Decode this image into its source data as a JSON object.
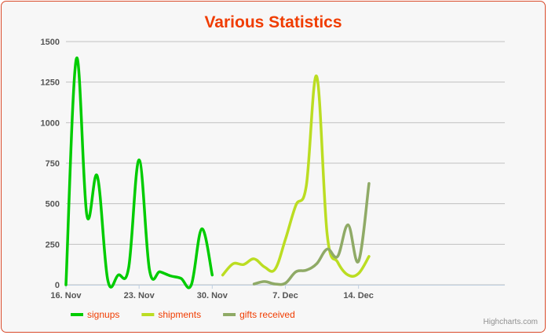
{
  "chart_data": {
    "type": "line",
    "title": "Various Statistics",
    "subtitle": "",
    "xlabel": "",
    "ylabel": "",
    "ylim": [
      0,
      1500
    ],
    "y_ticks": [
      "0",
      "250",
      "500",
      "750",
      "1000",
      "1250",
      "1500"
    ],
    "y_tick_values": [
      0,
      250,
      500,
      750,
      1000,
      1250,
      1500
    ],
    "x_range": [
      "2012-11-16",
      "2012-12-28"
    ],
    "x_ticks": [
      "16. Nov",
      "23. Nov",
      "30. Nov",
      "7. Dec",
      "14. Dec"
    ],
    "x_tick_dates": [
      "2012-11-16",
      "2012-11-23",
      "2012-11-30",
      "2012-12-07",
      "2012-12-14"
    ],
    "grid": true,
    "legend_position": "bottom-left",
    "series": [
      {
        "name": "signups",
        "color": "#00cc00",
        "x": [
          "2012-11-16",
          "2012-11-17",
          "2012-11-18",
          "2012-11-19",
          "2012-11-20",
          "2012-11-21",
          "2012-11-22",
          "2012-11-23",
          "2012-11-24",
          "2012-11-25",
          "2012-11-26",
          "2012-11-27",
          "2012-11-28",
          "2012-11-29",
          "2012-11-30",
          "2012-12-01"
        ],
        "values": [
          0,
          1395,
          430,
          670,
          30,
          60,
          105,
          770,
          90,
          80,
          55,
          40,
          0,
          345,
          60,
          null
        ]
      },
      {
        "name": "shipments",
        "color": "#bbdd22",
        "x": [
          "2012-12-01",
          "2012-12-02",
          "2012-12-03",
          "2012-12-04",
          "2012-12-05",
          "2012-12-06",
          "2012-12-07",
          "2012-12-08",
          "2012-12-09",
          "2012-12-10",
          "2012-12-11",
          "2012-12-12",
          "2012-12-13",
          "2012-12-14",
          "2012-12-15"
        ],
        "values": [
          60,
          130,
          125,
          160,
          110,
          95,
          280,
          490,
          610,
          1285,
          310,
          140,
          60,
          70,
          175
        ]
      },
      {
        "name": "gifts received",
        "color": "#8faa66",
        "x": [
          "2012-12-04",
          "2012-12-05",
          "2012-12-06",
          "2012-12-07",
          "2012-12-08",
          "2012-12-09",
          "2012-12-10",
          "2012-12-11",
          "2012-12-12",
          "2012-12-13",
          "2012-12-14",
          "2012-12-15"
        ],
        "values": [
          5,
          20,
          5,
          10,
          80,
          90,
          130,
          220,
          175,
          370,
          145,
          625
        ]
      }
    ]
  },
  "credits": "Highcharts.com"
}
